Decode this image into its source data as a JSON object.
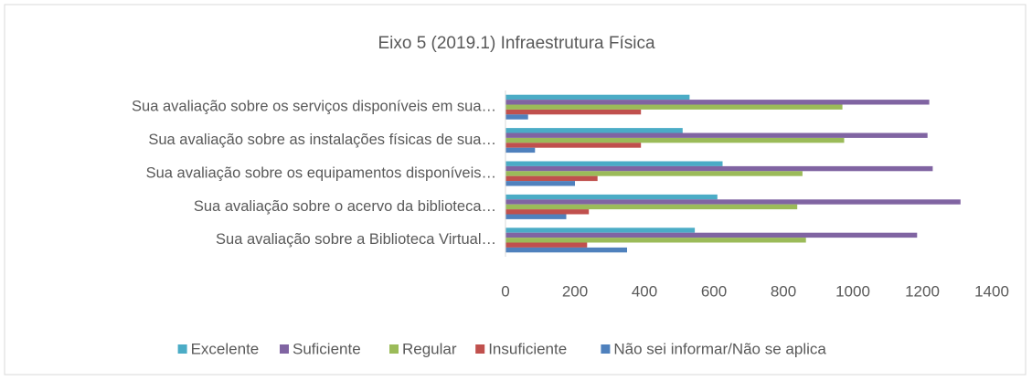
{
  "chart_data": {
    "type": "hbar",
    "title": "Eixo 5 (2019.1) Infraestrutura Física",
    "categories": [
      "Sua avaliação sobre os serviços disponíveis em sua…",
      "Sua avaliação sobre as instalações físicas de sua…",
      "Sua avaliação sobre os equipamentos disponíveis…",
      "Sua avaliação sobre o acervo da biblioteca…",
      "Sua avaliação sobre a Biblioteca Virtual…"
    ],
    "series": [
      {
        "name": "Excelente",
        "color": "#4bacc6",
        "values": [
          530,
          510,
          625,
          610,
          545
        ]
      },
      {
        "name": "Suficiente",
        "color": "#8064a2",
        "values": [
          1220,
          1215,
          1230,
          1310,
          1185
        ]
      },
      {
        "name": "Regular",
        "color": "#9bbb59",
        "values": [
          970,
          975,
          855,
          840,
          865
        ]
      },
      {
        "name": "Insuficiente",
        "color": "#c0504d",
        "values": [
          390,
          390,
          265,
          240,
          235
        ]
      },
      {
        "name": "Não sei informar/Não se aplica",
        "color": "#4f81bd",
        "values": [
          65,
          85,
          200,
          175,
          350
        ]
      }
    ],
    "xlim": [
      0,
      1400
    ],
    "xticks": [
      0,
      200,
      400,
      600,
      800,
      1000,
      1200,
      1400
    ],
    "grid": false,
    "legend": "bottom"
  }
}
